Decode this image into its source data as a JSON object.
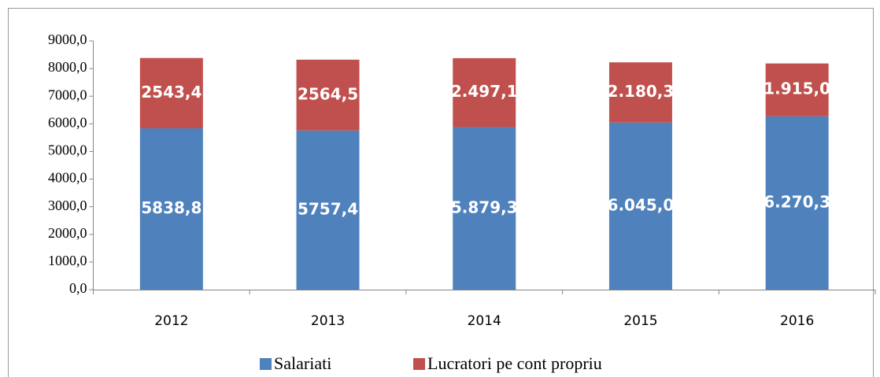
{
  "chart_data": {
    "type": "stacked_bar",
    "categories": [
      "2012",
      "2013",
      "2014",
      "2015",
      "2016"
    ],
    "series": [
      {
        "name": "Salariati",
        "color": "#4f81bd",
        "values": [
          5838.8,
          5757.4,
          5879.3,
          6045.0,
          6270.3
        ],
        "value_labels": [
          "5838,8",
          "5757,4",
          "5.879,3",
          "6.045,0",
          "6.270,3"
        ]
      },
      {
        "name": "Lucratori pe cont propriu",
        "color": "#c0504d",
        "values": [
          2543.4,
          2564.5,
          2497.1,
          2180.3,
          1915.0
        ],
        "value_labels": [
          "2543,4",
          "2564,5",
          "2.497,1",
          "2.180,3",
          "1.915,0"
        ]
      }
    ],
    "ylim": [
      0,
      9000
    ],
    "yticks": [
      {
        "value": 0,
        "label": "0,0"
      },
      {
        "value": 1000,
        "label": "1000,0"
      },
      {
        "value": 2000,
        "label": "2000,0"
      },
      {
        "value": 3000,
        "label": "3000,0"
      },
      {
        "value": 4000,
        "label": "4000,0"
      },
      {
        "value": 5000,
        "label": "5000,0"
      },
      {
        "value": 6000,
        "label": "6000,0"
      },
      {
        "value": 7000,
        "label": "7000,0"
      },
      {
        "value": 8000,
        "label": "8000,0"
      },
      {
        "value": 9000,
        "label": "9000,0"
      }
    ],
    "grid": false,
    "legend": "bottom"
  }
}
